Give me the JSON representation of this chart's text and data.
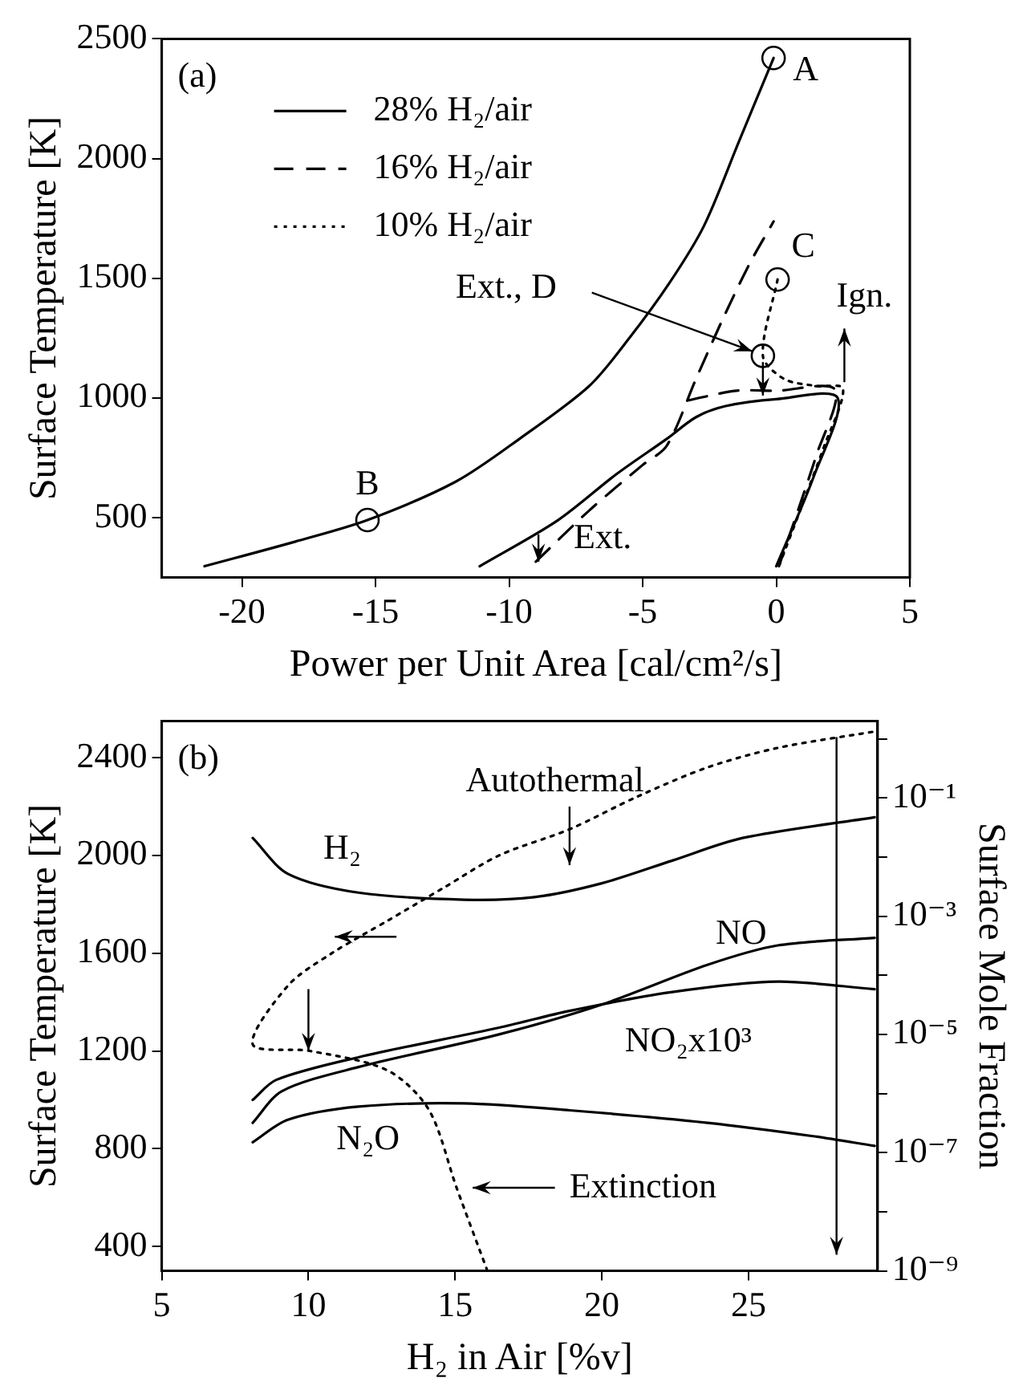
{
  "chart_data": [
    {
      "type": "line",
      "xlabel": "Power per Unit Area [cal/cm²/s]",
      "ylabel": "Surface Temperature [K]",
      "xlim": [
        -23,
        5
      ],
      "xticks": [
        -20,
        -15,
        -10,
        -5,
        0,
        5
      ],
      "ylim": [
        250,
        2500
      ],
      "yticks": [
        500,
        1000,
        1500,
        2000,
        2500
      ],
      "legend": "top left",
      "annotations": [
        "(a)",
        {
          "text": "A",
          "x": -0.1,
          "y": 2420
        },
        {
          "text": "B",
          "x": -15.3,
          "y": 490
        },
        {
          "text": "C",
          "x": 0.05,
          "y": 1495
        },
        {
          "text": "Ext., D",
          "x": -0.5,
          "y": 1176
        },
        {
          "text": "Ext.",
          "x": -8.9,
          "y": 316
        },
        "Ign."
      ],
      "series": [
        {
          "name": "28% H₂/air",
          "color": "#000000",
          "line_style": "solid",
          "x": [
            -21.4,
            -18,
            -15.3,
            -12,
            -9.6,
            -7,
            -5.5,
            -4,
            -2.7,
            -1.4,
            -0.1,
            null,
            -11.1,
            -8.2,
            -6,
            -4.1,
            -3,
            -1.9,
            0,
            2.3,
            1.4,
            0
          ],
          "values": [
            297,
            400,
            490,
            650,
            830,
            1050,
            1250,
            1480,
            1720,
            2070,
            2420,
            null,
            297,
            487,
            680,
            829,
            920,
            966,
            995,
            1000,
            671,
            297
          ]
        },
        {
          "name": "16% H₂/air",
          "color": "#000000",
          "line_style": "dashed",
          "x": [
            -9.0,
            -7,
            -5,
            -4.1,
            -3,
            -2,
            -1,
            -0.1,
            null,
            -3.3,
            -1.5,
            0,
            2.2,
            1.5,
            0.1
          ],
          "values": [
            316,
            530,
            720,
            800,
            1080,
            1330,
            1560,
            1737,
            null,
            990,
            1030,
            1030,
            1035,
            760,
            297
          ]
        },
        {
          "name": "10% H₂/air",
          "color": "#000000",
          "line_style": "dotted",
          "x": [
            0.05,
            -0.5,
            0.3,
            1.5,
            2.5,
            1.8,
            0.1
          ],
          "values": [
            1495,
            1176,
            1079,
            1050,
            1039,
            800,
            297
          ]
        },
        {
          "type": "scatter",
          "marker": "circle",
          "color": "#000000",
          "x": [
            -0.1,
            -15.3,
            0.05,
            -0.5
          ],
          "values": [
            2420,
            490,
            1495,
            1176
          ]
        }
      ]
    },
    {
      "type": "line",
      "xlabel": "H₂ in Air [%v]",
      "ylabel": "Surface Temperature [K]",
      "y2label": "Surface Mole Fraction",
      "xlim": [
        5,
        29.4
      ],
      "xticks": [
        5,
        10,
        15,
        20,
        25
      ],
      "ylim": [
        300,
        2550
      ],
      "yticks": [
        400,
        800,
        1200,
        1600,
        2000,
        2400
      ],
      "log": "y2",
      "y2lim": [
        1e-09,
        2
      ],
      "y2ticks": [
        {
          "value": 1e-09,
          "label": "10⁻⁹"
        },
        {
          "value": 1e-08,
          "label": null
        },
        {
          "value": 1e-07,
          "label": "10⁻⁷"
        },
        {
          "value": 1e-06,
          "label": null
        },
        {
          "value": 1e-05,
          "label": "10⁻⁵"
        },
        {
          "value": 0.0001,
          "label": null
        },
        {
          "value": 0.001,
          "label": "10⁻³"
        },
        {
          "value": 0.01,
          "label": null
        },
        {
          "value": 0.1,
          "label": "10⁻¹"
        },
        {
          "value": 1,
          "label": null
        }
      ],
      "annotations": [
        "(b)",
        "Autothermal",
        "Extinction"
      ],
      "ref_lines": [
        {
          "axis": "x",
          "value": 28,
          "color": "#000000"
        }
      ],
      "series": [
        {
          "color": "#000000",
          "line_style": "dotted",
          "x": [
            16.1,
            15.05,
            14.1,
            12.7,
            10.05,
            8.1,
            9.3,
            10.8,
            12.7,
            14.6,
            16.5,
            18.9,
            21.2,
            23.6,
            26.0,
            29.3
          ],
          "values": [
            300,
            640,
            960,
            1120,
            1200,
            1227,
            1467,
            1600,
            1733,
            1867,
            2000,
            2107,
            2240,
            2360,
            2440,
            2507
          ]
        },
        {
          "name": "H₂",
          "color": "#000000",
          "line_style": "solid",
          "axis": "y2",
          "x": [
            8.1,
            9.3,
            11.7,
            15.3,
            17.7,
            20.0,
            22.4,
            24.8,
            29.3
          ],
          "values": [
            0.021,
            0.0052,
            0.0025,
            0.0019,
            0.0021,
            0.0036,
            0.0087,
            0.021,
            0.047
          ]
        },
        {
          "name": "NO",
          "color": "#000000",
          "line_style": "solid",
          "axis": "y2",
          "x": [
            8.1,
            9.1,
            11.7,
            16.5,
            20.0,
            23.6,
            26.0,
            29.3
          ],
          "values": [
            3.2e-07,
            1.1e-06,
            2.8e-06,
            1e-05,
            3.2e-05,
            0.00015,
            0.00032,
            0.00043
          ]
        },
        {
          "name": "NO₂x10³",
          "color": "#000000",
          "line_style": "solid",
          "axis": "y2",
          "x": [
            8.1,
            8.9,
            11.7,
            16.5,
            18.9,
            22.4,
            26.0,
            29.3
          ],
          "values": [
            7.8e-07,
            1.7e-06,
            4.1e-06,
            1.3e-05,
            2.5e-05,
            5.2e-05,
            7.8e-05,
            5.8e-05
          ]
        },
        {
          "name": "N₂O",
          "color": "#000000",
          "line_style": "solid",
          "axis": "y2",
          "x": [
            8.1,
            9.3,
            11.7,
            15.3,
            18.9,
            23.6,
            27.2,
            29.3
          ],
          "values": [
            1.5e-07,
            3.6e-07,
            6e-07,
            6.8e-07,
            5.2e-07,
            3.2e-07,
            1.9e-07,
            1.3e-07
          ]
        }
      ]
    }
  ]
}
